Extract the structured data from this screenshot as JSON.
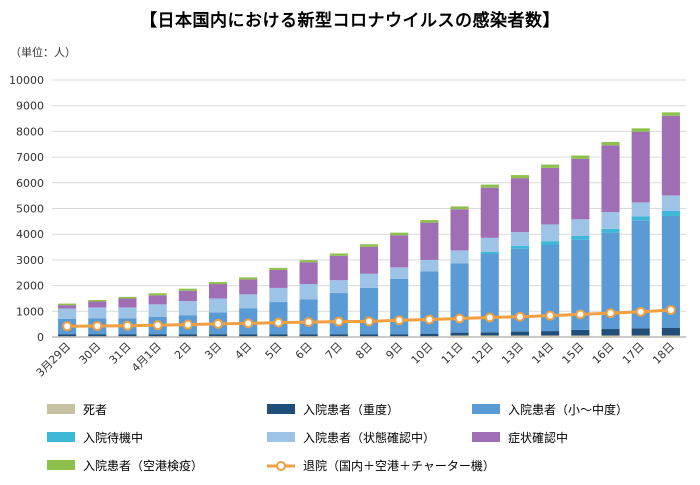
{
  "chart_data": {
    "type": "bar",
    "stacked": true,
    "title": "【日本国内における新型コロナウイルスの感染者数】",
    "unit_label": "（単位：人）",
    "ylim": [
      0,
      10000
    ],
    "yticks": [
      0,
      1000,
      2000,
      3000,
      4000,
      5000,
      6000,
      7000,
      8000,
      9000,
      10000
    ],
    "categories": [
      "3月29日",
      "30日",
      "31日",
      "4月1日",
      "2日",
      "3日",
      "4日",
      "5日",
      "6日",
      "7日",
      "8日",
      "9日",
      "10日",
      "11日",
      "12日",
      "13日",
      "14日",
      "15日",
      "16日",
      "17日",
      "18日"
    ],
    "series": [
      {
        "name": "死者",
        "color": "#c8c0a2",
        "values": [
          30,
          30,
          30,
          30,
          30,
          30,
          30,
          30,
          30,
          30,
          30,
          30,
          30,
          60,
          60,
          60,
          60,
          60,
          60,
          60,
          60
        ]
      },
      {
        "name": "入院患者（重度）",
        "color": "#1f4e79",
        "values": [
          80,
          80,
          80,
          80,
          80,
          80,
          80,
          80,
          80,
          80,
          80,
          80,
          100,
          110,
          120,
          150,
          170,
          220,
          250,
          280,
          290
        ]
      },
      {
        "name": "入院患者（小〜中度）",
        "color": "#5b9bd5",
        "values": [
          600,
          620,
          620,
          680,
          740,
          850,
          1000,
          1250,
          1350,
          1600,
          1800,
          2150,
          2420,
          2700,
          3050,
          3220,
          3350,
          3500,
          3750,
          4200,
          4360
        ]
      },
      {
        "name": "入院待機中",
        "color": "#3db8d6",
        "values": [
          0,
          0,
          0,
          0,
          0,
          0,
          0,
          0,
          0,
          0,
          0,
          0,
          0,
          0,
          80,
          120,
          150,
          150,
          150,
          150,
          200
        ]
      },
      {
        "name": "入院患者（状態確認中）",
        "color": "#9dc3e6",
        "values": [
          400,
          420,
          420,
          480,
          550,
          540,
          550,
          550,
          600,
          500,
          550,
          450,
          450,
          500,
          550,
          530,
          650,
          650,
          650,
          550,
          600
        ]
      },
      {
        "name": "症状確認中",
        "color": "#a06eb4",
        "values": [
          130,
          230,
          350,
          350,
          400,
          560,
          580,
          700,
          850,
          950,
          1050,
          1250,
          1450,
          1600,
          1950,
          2100,
          2200,
          2350,
          2600,
          2750,
          3100
        ]
      },
      {
        "name": "入院患者（空港検疫）",
        "color": "#8dc04d",
        "values": [
          60,
          60,
          60,
          80,
          80,
          80,
          80,
          80,
          80,
          90,
          100,
          100,
          100,
          110,
          120,
          120,
          130,
          130,
          130,
          130,
          130
        ]
      }
    ],
    "line_series": {
      "name": "退院（国内＋空港＋チャーター機）",
      "color": "#f0a040",
      "values": [
        420,
        430,
        440,
        460,
        480,
        510,
        530,
        560,
        580,
        600,
        610,
        650,
        680,
        720,
        760,
        790,
        830,
        880,
        930,
        980,
        1050
      ]
    },
    "legend": [
      {
        "name": "死者",
        "kind": "box",
        "color": "#c8c0a2"
      },
      {
        "name": "入院患者（重度）",
        "kind": "box",
        "color": "#1f4e79"
      },
      {
        "name": "入院患者（小〜中度）",
        "kind": "box",
        "color": "#5b9bd5"
      },
      {
        "name": "入院待機中",
        "kind": "box",
        "color": "#3db8d6"
      },
      {
        "name": "入院患者（状態確認中）",
        "kind": "box",
        "color": "#9dc3e6"
      },
      {
        "name": "症状確認中",
        "kind": "box",
        "color": "#a06eb4"
      },
      {
        "name": "入院患者（空港検疫）",
        "kind": "box",
        "color": "#8dc04d"
      },
      {
        "name": "退院（国内＋空港＋チャーター機）",
        "kind": "line",
        "color": "#f0a040"
      }
    ]
  }
}
